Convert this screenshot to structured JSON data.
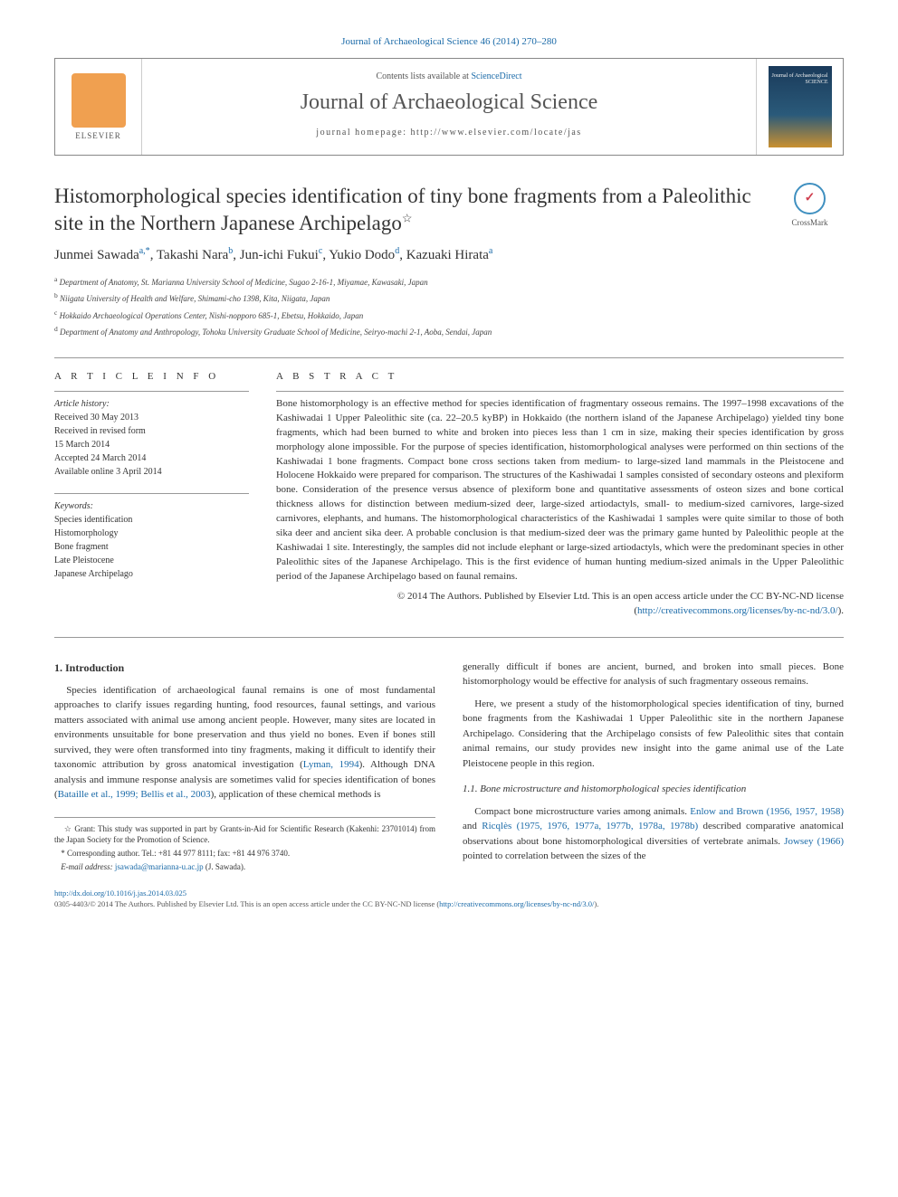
{
  "header": {
    "top_link": "Journal of Archaeological Science 46 (2014) 270–280",
    "contents_text": "Contents lists available at ",
    "contents_link": "ScienceDirect",
    "journal_name": "Journal of Archaeological Science",
    "homepage_label": "journal homepage: ",
    "homepage_url": "http://www.elsevier.com/locate/jas",
    "publisher": "ELSEVIER",
    "cover_text": "Journal of\nArchaeological\nSCIENCE"
  },
  "crossmark": {
    "label": "CrossMark"
  },
  "title": "Histomorphological species identification of tiny bone fragments from a Paleolithic site in the Northern Japanese Archipelago",
  "title_note": "☆",
  "authors_raw": "Junmei Sawada",
  "authors": [
    {
      "name": "Junmei Sawada",
      "sup": "a,*"
    },
    {
      "name": "Takashi Nara",
      "sup": "b"
    },
    {
      "name": "Jun-ichi Fukui",
      "sup": "c"
    },
    {
      "name": "Yukio Dodo",
      "sup": "d"
    },
    {
      "name": "Kazuaki Hirata",
      "sup": "a"
    }
  ],
  "affiliations": [
    {
      "sup": "a",
      "text": "Department of Anatomy, St. Marianna University School of Medicine, Sugao 2-16-1, Miyamae, Kawasaki, Japan"
    },
    {
      "sup": "b",
      "text": "Niigata University of Health and Welfare, Shimami-cho 1398, Kita, Niigata, Japan"
    },
    {
      "sup": "c",
      "text": "Hokkaido Archaeological Operations Center, Nishi-nopporo 685-1, Ebetsu, Hokkaido, Japan"
    },
    {
      "sup": "d",
      "text": "Department of Anatomy and Anthropology, Tohoku University Graduate School of Medicine, Seiryo-machi 2-1, Aoba, Sendai, Japan"
    }
  ],
  "article_info": {
    "heading": "A R T I C L E  I N F O",
    "history_label": "Article history:",
    "history": [
      "Received 30 May 2013",
      "Received in revised form",
      "15 March 2014",
      "Accepted 24 March 2014",
      "Available online 3 April 2014"
    ],
    "keywords_label": "Keywords:",
    "keywords": [
      "Species identification",
      "Histomorphology",
      "Bone fragment",
      "Late Pleistocene",
      "Japanese Archipelago"
    ]
  },
  "abstract": {
    "heading": "A B S T R A C T",
    "text": "Bone histomorphology is an effective method for species identification of fragmentary osseous remains. The 1997–1998 excavations of the Kashiwadai 1 Upper Paleolithic site (ca. 22–20.5 kyBP) in Hokkaido (the northern island of the Japanese Archipelago) yielded tiny bone fragments, which had been burned to white and broken into pieces less than 1 cm in size, making their species identification by gross morphology alone impossible. For the purpose of species identification, histomorphological analyses were performed on thin sections of the Kashiwadai 1 bone fragments. Compact bone cross sections taken from medium- to large-sized land mammals in the Pleistocene and Holocene Hokkaido were prepared for comparison. The structures of the Kashiwadai 1 samples consisted of secondary osteons and plexiform bone. Consideration of the presence versus absence of plexiform bone and quantitative assessments of osteon sizes and bone cortical thickness allows for distinction between medium-sized deer, large-sized artiodactyls, small- to medium-sized carnivores, large-sized carnivores, elephants, and humans. The histomorphological characteristics of the Kashiwadai 1 samples were quite similar to those of both sika deer and ancient sika deer. A probable conclusion is that medium-sized deer was the primary game hunted by Paleolithic people at the Kashiwadai 1 site. Interestingly, the samples did not include elephant or large-sized artiodactyls, which were the predominant species in other Paleolithic sites of the Japanese Archipelago. This is the first evidence of human hunting medium-sized animals in the Upper Paleolithic period of the Japanese Archipelago based on faunal remains.",
    "copyright": "© 2014 The Authors. Published by Elsevier Ltd. This is an open access article under the CC BY-NC-ND license (",
    "license_url": "http://creativecommons.org/licenses/by-nc-nd/3.0/",
    "license_close": ")."
  },
  "body": {
    "intro_heading": "1. Introduction",
    "intro_p1": "Species identification of archaeological faunal remains is one of most fundamental approaches to clarify issues regarding hunting, food resources, faunal settings, and various matters associated with animal use among ancient people. However, many sites are located in environments unsuitable for bone preservation and thus yield no bones. Even if bones still survived, they were often transformed into tiny fragments, making it difficult to identify their taxonomic attribution by gross anatomical investigation (",
    "intro_ref1": "Lyman, 1994",
    "intro_p1b": "). Although DNA analysis and immune response analysis are sometimes valid for species identification of bones (",
    "intro_ref2": "Bataille et al., 1999; Bellis et al., 2003",
    "intro_p1c": "), application of these chemical methods is",
    "col2_p1": "generally difficult if bones are ancient, burned, and broken into small pieces. Bone histomorphology would be effective for analysis of such fragmentary osseous remains.",
    "col2_p2": "Here, we present a study of the histomorphological species identification of tiny, burned bone fragments from the Kashiwadai 1 Upper Paleolithic site in the northern Japanese Archipelago. Considering that the Archipelago consists of few Paleolithic sites that contain animal remains, our study provides new insight into the game animal use of the Late Pleistocene people in this region.",
    "sub_heading": "1.1. Bone microstructure and histomorphological species identification",
    "col2_p3a": "Compact bone microstructure varies among animals. ",
    "col2_ref1": "Enlow and Brown (1956, 1957, 1958)",
    "col2_p3b": " and ",
    "col2_ref2": "Ricqlès (1975, 1976, 1977a, 1977b, 1978a, 1978b)",
    "col2_p3c": " described comparative anatomical observations about bone histomorphological diversities of vertebrate animals. ",
    "col2_ref3": "Jowsey (1966)",
    "col2_p3d": " pointed to correlation between the sizes of the"
  },
  "footnotes": {
    "grant": "☆ Grant: This study was supported in part by Grants-in-Aid for Scientific Research (Kakenhi: 23701014) from the Japan Society for the Promotion of Science.",
    "corr": "* Corresponding author. Tel.: +81 44 977 8111; fax: +81 44 976 3740.",
    "email_label": "E-mail address: ",
    "email": "jsawada@marianna-u.ac.jp",
    "email_suffix": " (J. Sawada)."
  },
  "footer": {
    "doi": "http://dx.doi.org/10.1016/j.jas.2014.03.025",
    "issn_line": "0305-4403/© 2014 The Authors. Published by Elsevier Ltd. This is an open access article under the CC BY-NC-ND license (",
    "license_url": "http://creativecommons.org/licenses/by-nc-nd/3.0/",
    "close": ")."
  },
  "colors": {
    "link": "#1a6aa8",
    "text": "#333333",
    "border": "#999999"
  }
}
